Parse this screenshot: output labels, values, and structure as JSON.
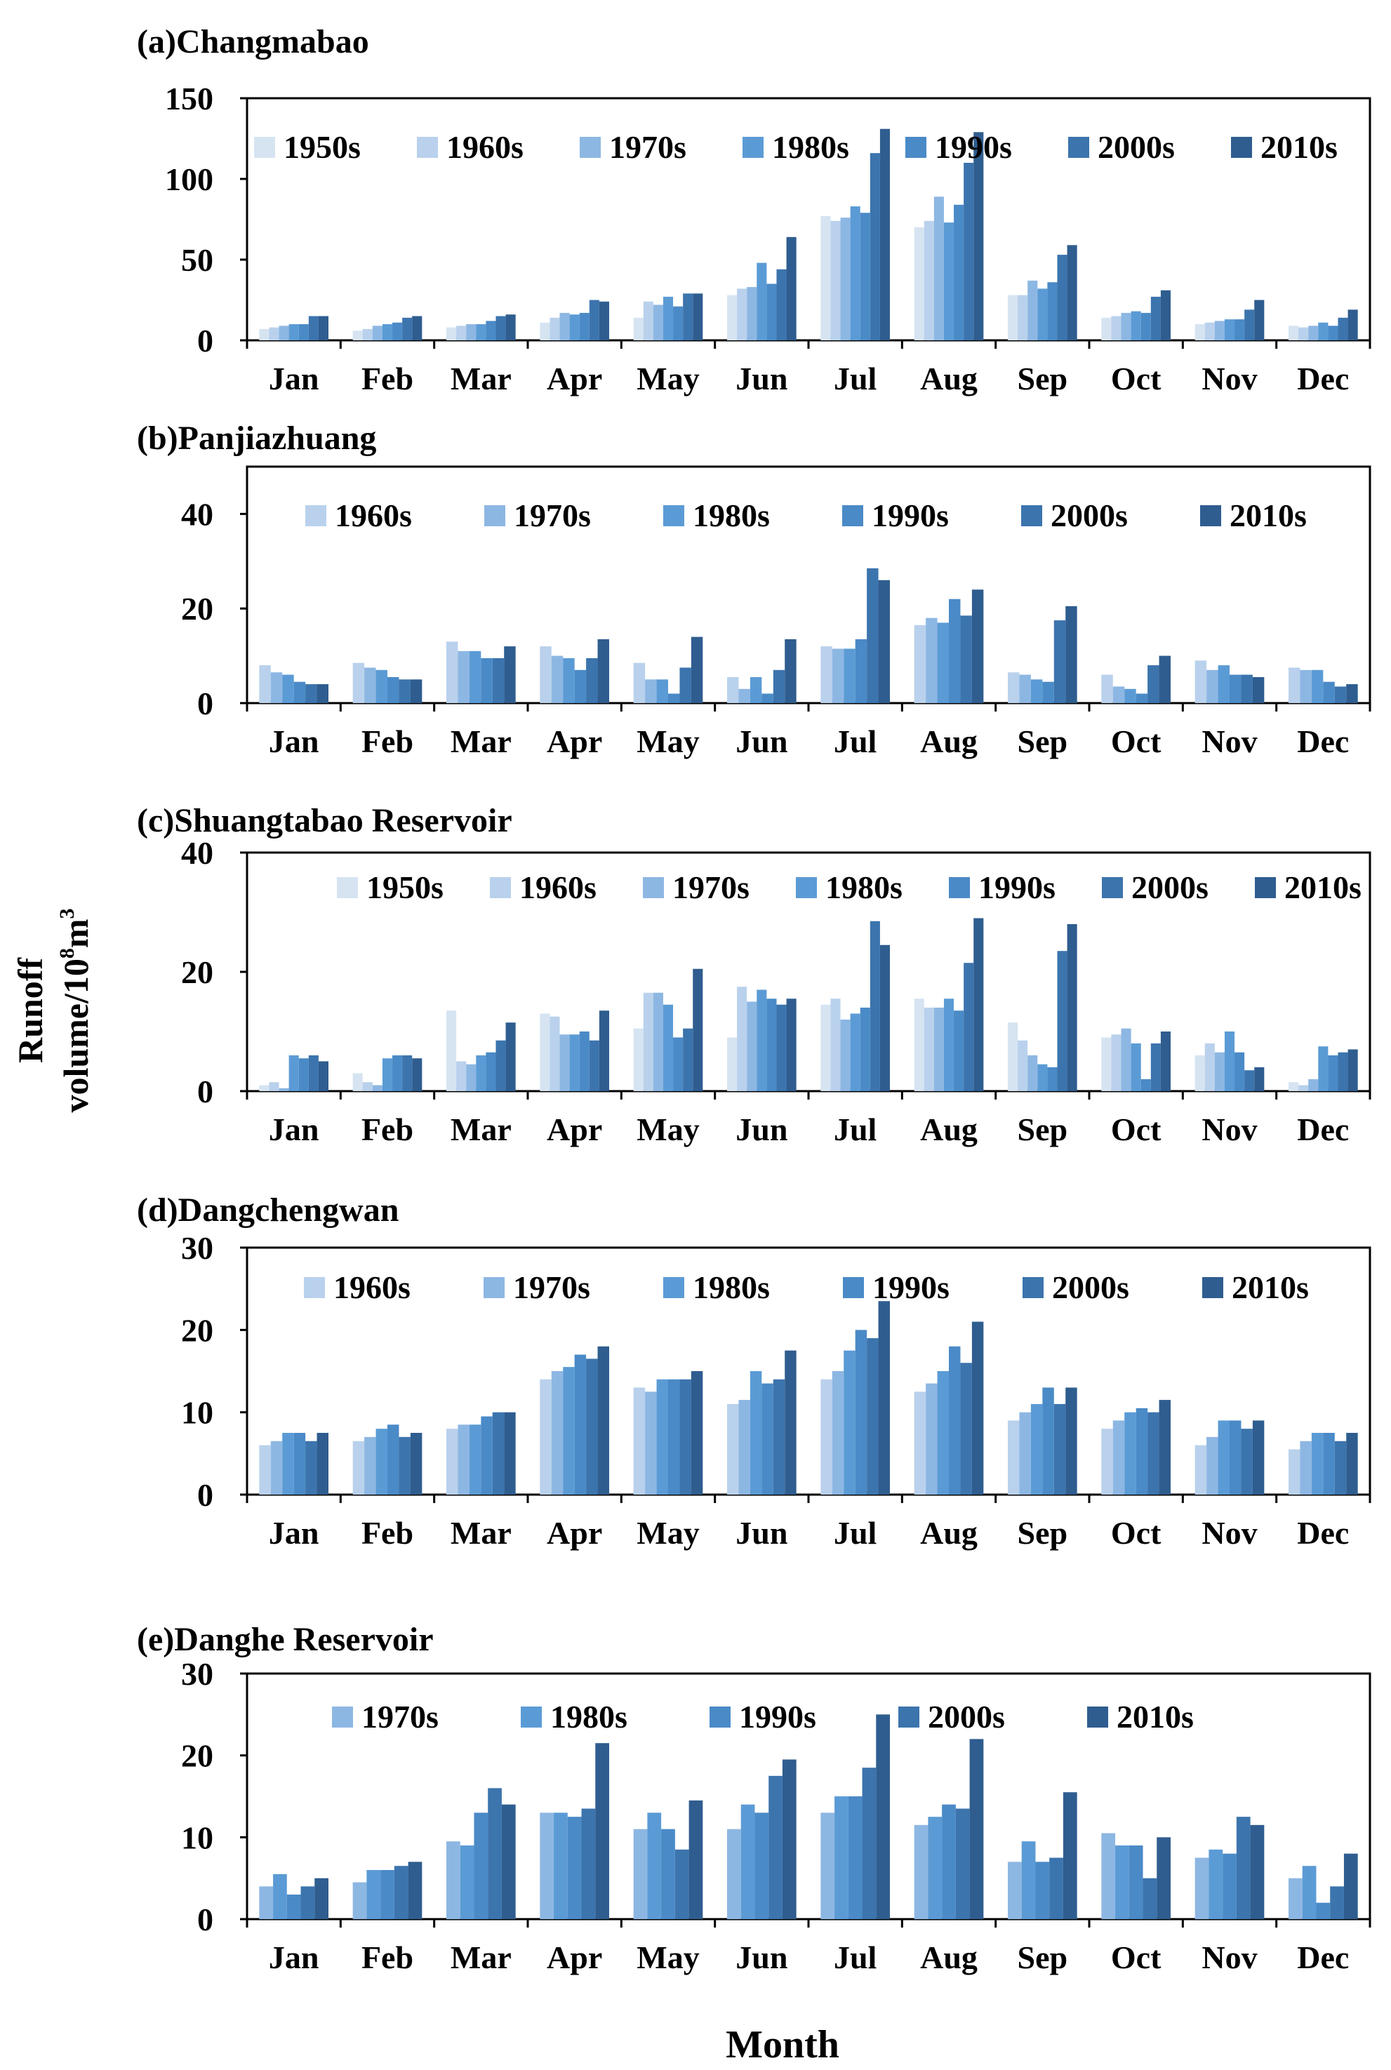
{
  "figure": {
    "ylabel_line1": "Runoff",
    "ylabel_line2_prefix": "volume/10",
    "ylabel_line2_exp1": "8",
    "ylabel_line2_mid": "m",
    "ylabel_line2_exp2": "3",
    "xlabel": "Month"
  },
  "colors": {
    "1950s": "#d6e4f2",
    "1960s": "#b9d1ec",
    "1970s": "#8db7e3",
    "1980s": "#5b9bd5",
    "1990s": "#4a8ac7",
    "2000s": "#3c74ad",
    "2010s": "#2f5d8f"
  },
  "chart_data": [
    {
      "type": "bar",
      "title": "(a)Changmabao",
      "categories": [
        "Jan",
        "Feb",
        "Mar",
        "Apr",
        "May",
        "Jun",
        "Jul",
        "Aug",
        "Sep",
        "Oct",
        "Nov",
        "Dec"
      ],
      "ylim": [
        0,
        150
      ],
      "yticks": [
        0,
        50,
        100,
        150
      ],
      "legend_position": "top",
      "series": [
        {
          "name": "1950s",
          "values": [
            7,
            6,
            8,
            11,
            14,
            28,
            77,
            70,
            28,
            14,
            10,
            9
          ]
        },
        {
          "name": "1960s",
          "values": [
            8,
            7,
            9,
            14,
            24,
            32,
            74,
            74,
            28,
            15,
            11,
            8
          ]
        },
        {
          "name": "1970s",
          "values": [
            9,
            9,
            10,
            17,
            22,
            33,
            76,
            89,
            37,
            17,
            12,
            9
          ]
        },
        {
          "name": "1980s",
          "values": [
            10,
            10,
            10,
            16,
            27,
            48,
            83,
            73,
            32,
            18,
            13,
            11
          ]
        },
        {
          "name": "1990s",
          "values": [
            10,
            11,
            12,
            17,
            21,
            35,
            79,
            84,
            36,
            17,
            13,
            9
          ]
        },
        {
          "name": "2000s",
          "values": [
            15,
            14,
            15,
            25,
            29,
            44,
            116,
            110,
            53,
            27,
            19,
            14
          ]
        },
        {
          "name": "2010s",
          "values": [
            15,
            15,
            16,
            24,
            29,
            64,
            131,
            129,
            59,
            31,
            25,
            19
          ]
        }
      ]
    },
    {
      "type": "bar",
      "title": "(b)Panjiazhuang",
      "categories": [
        "Jan",
        "Feb",
        "Mar",
        "Apr",
        "May",
        "Jun",
        "Jul",
        "Aug",
        "Sep",
        "Oct",
        "Nov",
        "Dec"
      ],
      "ylim": [
        0,
        50
      ],
      "yticks": [
        0,
        20,
        40
      ],
      "legend_position": "top",
      "series": [
        {
          "name": "1960s",
          "values": [
            8,
            8.5,
            13,
            12,
            8.5,
            5.5,
            12,
            16.5,
            6.5,
            6,
            9,
            7.5
          ]
        },
        {
          "name": "1970s",
          "values": [
            6.5,
            7.5,
            11,
            10,
            5,
            3,
            11.5,
            18,
            6,
            3.5,
            7,
            7
          ]
        },
        {
          "name": "1980s",
          "values": [
            6,
            7,
            11,
            9.5,
            5,
            5.5,
            11.5,
            17,
            5,
            3,
            8,
            7
          ]
        },
        {
          "name": "1990s",
          "values": [
            4.5,
            5.5,
            9.5,
            7,
            2,
            2,
            13.5,
            22,
            4.5,
            2,
            6,
            4.5
          ]
        },
        {
          "name": "2000s",
          "values": [
            4,
            5,
            9.5,
            9.5,
            7.5,
            7,
            28.5,
            18.5,
            17.5,
            8,
            6,
            3.5
          ]
        },
        {
          "name": "2010s",
          "values": [
            4,
            5,
            12,
            13.5,
            14,
            13.5,
            26,
            24,
            20.5,
            10,
            5.5,
            4
          ]
        }
      ]
    },
    {
      "type": "bar",
      "title": "(c)Shuangtabao Reservoir",
      "categories": [
        "Jan",
        "Feb",
        "Mar",
        "Apr",
        "May",
        "Jun",
        "Jul",
        "Aug",
        "Sep",
        "Oct",
        "Nov",
        "Dec"
      ],
      "ylim": [
        0,
        40
      ],
      "yticks": [
        0,
        20,
        40
      ],
      "legend_position": "top",
      "series": [
        {
          "name": "1950s",
          "values": [
            1,
            3,
            13.5,
            13,
            10.5,
            9,
            14.5,
            15.5,
            11.5,
            9,
            6,
            1.5
          ]
        },
        {
          "name": "1960s",
          "values": [
            1.5,
            1.5,
            5,
            12.5,
            16.5,
            17.5,
            15.5,
            14,
            8.5,
            9.5,
            8,
            1
          ]
        },
        {
          "name": "1970s",
          "values": [
            0.5,
            1,
            4.5,
            9.5,
            16.5,
            15,
            12,
            14,
            6,
            10.5,
            6.5,
            2
          ]
        },
        {
          "name": "1980s",
          "values": [
            6,
            5.5,
            6,
            9.5,
            14.5,
            17,
            13,
            15.5,
            4.5,
            8,
            10,
            7.5
          ]
        },
        {
          "name": "1990s",
          "values": [
            5.5,
            6,
            6.5,
            10,
            9,
            15.5,
            14,
            13.5,
            4,
            2,
            6.5,
            6
          ]
        },
        {
          "name": "2000s",
          "values": [
            6,
            6,
            8.5,
            8.5,
            10.5,
            14.5,
            28.5,
            21.5,
            23.5,
            8,
            3.5,
            6.5
          ]
        },
        {
          "name": "2010s",
          "values": [
            5,
            5.5,
            11.5,
            13.5,
            20.5,
            15.5,
            24.5,
            29,
            28,
            10,
            4,
            7
          ]
        }
      ]
    },
    {
      "type": "bar",
      "title": "(d)Dangchengwan",
      "categories": [
        "Jan",
        "Feb",
        "Mar",
        "Apr",
        "May",
        "Jun",
        "Jul",
        "Aug",
        "Sep",
        "Oct",
        "Nov",
        "Dec"
      ],
      "ylim": [
        0,
        30
      ],
      "yticks": [
        0,
        10,
        20,
        30
      ],
      "legend_position": "top",
      "series": [
        {
          "name": "1960s",
          "values": [
            6,
            6.5,
            8,
            14,
            13,
            11,
            14,
            12.5,
            9,
            8,
            6,
            5.5
          ]
        },
        {
          "name": "1970s",
          "values": [
            6.5,
            7,
            8.5,
            15,
            12.5,
            11.5,
            15,
            13.5,
            10,
            9,
            7,
            6.5
          ]
        },
        {
          "name": "1980s",
          "values": [
            7.5,
            8,
            8.5,
            15.5,
            14,
            15,
            17.5,
            15,
            11,
            10,
            9,
            7.5
          ]
        },
        {
          "name": "1990s",
          "values": [
            7.5,
            8.5,
            9.5,
            17,
            14,
            13.5,
            20,
            18,
            13,
            10.5,
            9,
            7.5
          ]
        },
        {
          "name": "2000s",
          "values": [
            6.5,
            7,
            10,
            16.5,
            14,
            14,
            19,
            16,
            11,
            10,
            8,
            6.5
          ]
        },
        {
          "name": "2010s",
          "values": [
            7.5,
            7.5,
            10,
            18,
            15,
            17.5,
            23.5,
            21,
            13,
            11.5,
            9,
            7.5
          ]
        }
      ]
    },
    {
      "type": "bar",
      "title": "(e)Danghe Reservoir",
      "categories": [
        "Jan",
        "Feb",
        "Mar",
        "Apr",
        "May",
        "Jun",
        "Jul",
        "Aug",
        "Sep",
        "Oct",
        "Nov",
        "Dec"
      ],
      "ylim": [
        0,
        30
      ],
      "yticks": [
        0,
        10,
        20,
        30
      ],
      "legend_position": "top",
      "series": [
        {
          "name": "1970s",
          "values": [
            4,
            4.5,
            9.5,
            13,
            11,
            11,
            13,
            11.5,
            7,
            10.5,
            7.5,
            5
          ]
        },
        {
          "name": "1980s",
          "values": [
            5.5,
            6,
            9,
            13,
            13,
            14,
            15,
            12.5,
            9.5,
            9,
            8.5,
            6.5
          ]
        },
        {
          "name": "1990s",
          "values": [
            3,
            6,
            13,
            12.5,
            11,
            13,
            15,
            14,
            7,
            9,
            8,
            2
          ]
        },
        {
          "name": "2000s",
          "values": [
            4,
            6.5,
            16,
            13.5,
            8.5,
            17.5,
            18.5,
            13.5,
            7.5,
            5,
            12.5,
            4
          ]
        },
        {
          "name": "2010s",
          "values": [
            5,
            7,
            14,
            21.5,
            14.5,
            19.5,
            25,
            22,
            15.5,
            10,
            11.5,
            8
          ]
        }
      ]
    }
  ]
}
